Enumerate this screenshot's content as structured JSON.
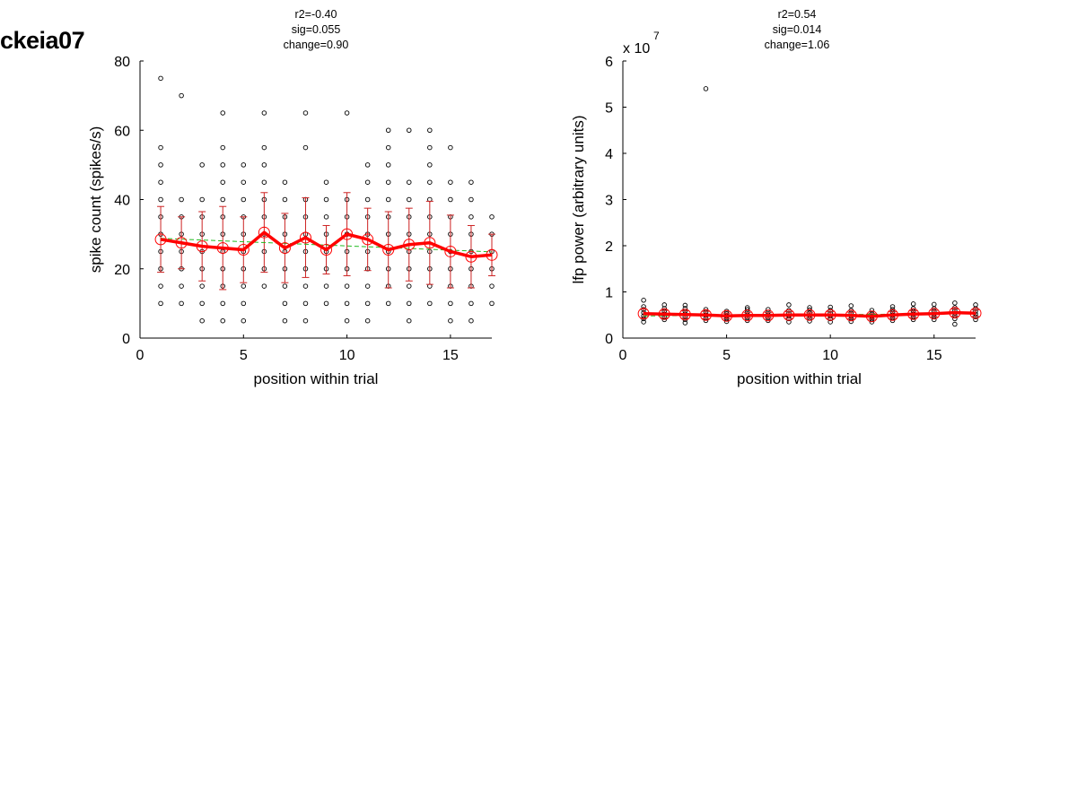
{
  "page_title": "ckeia07",
  "colors": {
    "mean": "#ff0000",
    "errorbar": "#cc2222",
    "fit": "#22bb22",
    "points": "#000000"
  },
  "chart_data": [
    {
      "type": "scatter",
      "stats": [
        "r2=-0.40",
        "sig=0.055",
        "change=0.90"
      ],
      "xlabel": "position within trial",
      "ylabel": "spike count (spikes/s)",
      "xlim": [
        0,
        17
      ],
      "ylim": [
        0,
        80
      ],
      "xticks": [
        0,
        5,
        10,
        15
      ],
      "yticks": [
        0,
        20,
        40,
        60,
        80
      ],
      "mean": {
        "x": [
          1,
          2,
          3,
          4,
          5,
          6,
          7,
          8,
          9,
          10,
          11,
          12,
          13,
          14,
          15,
          16,
          17
        ],
        "y": [
          28.5,
          27.5,
          26.5,
          26,
          25.5,
          30.5,
          26,
          29,
          25.5,
          30,
          28.5,
          25.5,
          27,
          27.5,
          25,
          23.5,
          24
        ]
      },
      "error": [
        9.5,
        7.5,
        10,
        12,
        9.5,
        11.5,
        10,
        11.5,
        7,
        12,
        9,
        11,
        10.5,
        12,
        10.5,
        9,
        6
      ],
      "fit": {
        "x": [
          1,
          17
        ],
        "y": [
          28.8,
          24.9
        ]
      },
      "points": [
        {
          "x": 1,
          "y": [
            10,
            15,
            20,
            25,
            30,
            35,
            40,
            45,
            50,
            55,
            75
          ]
        },
        {
          "x": 2,
          "y": [
            10,
            15,
            20,
            25,
            30,
            35,
            40,
            70
          ]
        },
        {
          "x": 3,
          "y": [
            5,
            10,
            15,
            20,
            25,
            30,
            35,
            40,
            50
          ]
        },
        {
          "x": 4,
          "y": [
            5,
            10,
            15,
            20,
            25,
            30,
            35,
            40,
            45,
            50,
            55,
            65
          ]
        },
        {
          "x": 5,
          "y": [
            5,
            10,
            15,
            20,
            25,
            30,
            35,
            40,
            45,
            50
          ]
        },
        {
          "x": 6,
          "y": [
            15,
            20,
            25,
            30,
            35,
            40,
            45,
            50,
            55,
            65
          ]
        },
        {
          "x": 7,
          "y": [
            5,
            10,
            15,
            20,
            25,
            30,
            35,
            40,
            45
          ]
        },
        {
          "x": 8,
          "y": [
            5,
            10,
            15,
            20,
            25,
            30,
            35,
            40,
            55,
            65
          ]
        },
        {
          "x": 9,
          "y": [
            10,
            15,
            20,
            25,
            30,
            35,
            40,
            45
          ]
        },
        {
          "x": 10,
          "y": [
            5,
            10,
            15,
            20,
            25,
            30,
            35,
            40,
            65
          ]
        },
        {
          "x": 11,
          "y": [
            5,
            10,
            15,
            20,
            25,
            30,
            35,
            40,
            45,
            50
          ]
        },
        {
          "x": 12,
          "y": [
            10,
            15,
            20,
            25,
            30,
            35,
            40,
            45,
            50,
            55,
            60
          ]
        },
        {
          "x": 13,
          "y": [
            5,
            10,
            15,
            20,
            25,
            30,
            35,
            40,
            45,
            60
          ]
        },
        {
          "x": 14,
          "y": [
            10,
            15,
            20,
            25,
            30,
            35,
            40,
            45,
            50,
            55,
            60
          ]
        },
        {
          "x": 15,
          "y": [
            5,
            10,
            15,
            20,
            25,
            30,
            35,
            40,
            45,
            55
          ]
        },
        {
          "x": 16,
          "y": [
            5,
            10,
            15,
            20,
            25,
            30,
            35,
            40,
            45
          ]
        },
        {
          "x": 17,
          "y": [
            10,
            15,
            20,
            25,
            30,
            35
          ]
        }
      ]
    },
    {
      "type": "scatter",
      "stats": [
        "r2=0.54",
        "sig=0.014",
        "change=1.06"
      ],
      "xlabel": "position within trial",
      "ylabel": "lfp power (arbitrary units)",
      "yscale_label": "x 10",
      "yscale_exponent": "7",
      "xlim": [
        0,
        17
      ],
      "ylim": [
        0,
        6
      ],
      "xticks": [
        0,
        5,
        10,
        15
      ],
      "yticks": [
        0,
        1,
        2,
        3,
        4,
        5,
        6
      ],
      "mean": {
        "x": [
          1,
          2,
          3,
          4,
          5,
          6,
          7,
          8,
          9,
          10,
          11,
          12,
          13,
          14,
          15,
          16,
          17
        ],
        "y": [
          0.53,
          0.52,
          0.51,
          0.5,
          0.48,
          0.49,
          0.49,
          0.5,
          0.5,
          0.5,
          0.49,
          0.47,
          0.5,
          0.52,
          0.53,
          0.55,
          0.54
        ]
      },
      "error": [
        0.1,
        0.08,
        0.08,
        0.08,
        0.06,
        0.06,
        0.06,
        0.07,
        0.06,
        0.07,
        0.07,
        0.06,
        0.07,
        0.07,
        0.07,
        0.08,
        0.07
      ],
      "fit": {
        "x": [
          1,
          17
        ],
        "y": [
          0.48,
          0.53
        ]
      },
      "points": [
        {
          "x": 1,
          "y": [
            0.35,
            0.42,
            0.48,
            0.55,
            0.62,
            0.68,
            0.82
          ]
        },
        {
          "x": 2,
          "y": [
            0.4,
            0.46,
            0.52,
            0.58,
            0.64,
            0.72
          ]
        },
        {
          "x": 3,
          "y": [
            0.33,
            0.4,
            0.46,
            0.52,
            0.58,
            0.64,
            0.71
          ]
        },
        {
          "x": 4,
          "y": [
            0.38,
            0.44,
            0.5,
            0.56,
            0.62,
            5.4
          ]
        },
        {
          "x": 5,
          "y": [
            0.36,
            0.42,
            0.48,
            0.53,
            0.58
          ]
        },
        {
          "x": 6,
          "y": [
            0.38,
            0.44,
            0.5,
            0.56,
            0.62,
            0.66
          ]
        },
        {
          "x": 7,
          "y": [
            0.38,
            0.44,
            0.5,
            0.56,
            0.62
          ]
        },
        {
          "x": 8,
          "y": [
            0.35,
            0.42,
            0.48,
            0.54,
            0.6,
            0.72
          ]
        },
        {
          "x": 9,
          "y": [
            0.37,
            0.43,
            0.49,
            0.55,
            0.61,
            0.66
          ]
        },
        {
          "x": 10,
          "y": [
            0.35,
            0.42,
            0.48,
            0.54,
            0.6,
            0.67
          ]
        },
        {
          "x": 11,
          "y": [
            0.36,
            0.42,
            0.48,
            0.54,
            0.6,
            0.7
          ]
        },
        {
          "x": 12,
          "y": [
            0.35,
            0.41,
            0.47,
            0.53,
            0.6
          ]
        },
        {
          "x": 13,
          "y": [
            0.38,
            0.44,
            0.5,
            0.56,
            0.62,
            0.68
          ]
        },
        {
          "x": 14,
          "y": [
            0.4,
            0.46,
            0.52,
            0.58,
            0.64,
            0.74
          ]
        },
        {
          "x": 15,
          "y": [
            0.4,
            0.46,
            0.52,
            0.58,
            0.64,
            0.73
          ]
        },
        {
          "x": 16,
          "y": [
            0.3,
            0.42,
            0.48,
            0.54,
            0.6,
            0.66,
            0.76
          ]
        },
        {
          "x": 17,
          "y": [
            0.4,
            0.46,
            0.52,
            0.58,
            0.64,
            0.72
          ]
        }
      ]
    }
  ]
}
